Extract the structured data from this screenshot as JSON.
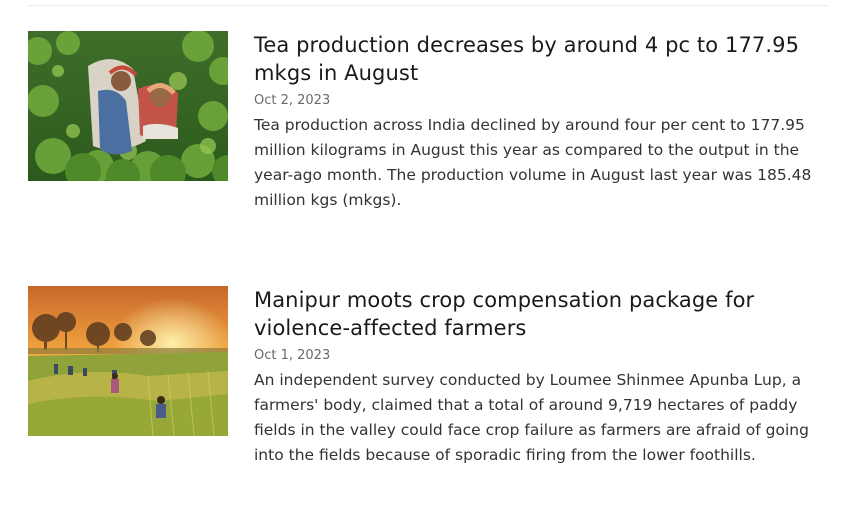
{
  "articles": [
    {
      "title": "Tea production decreases by around 4 pc to 177.95 mkgs in August",
      "date": "Oct 2, 2023",
      "summary": "Tea production across India declined by around four per cent to 177.95 million kilograms in August this year as compared to the output in the year-ago month. The production volume in August last year was 185.48 million kgs (mkgs).",
      "thumbnail": "tea-pickers-photo"
    },
    {
      "title": "Manipur moots crop compensation package for violence-affected farmers",
      "date": "Oct 1, 2023",
      "summary": "An independent survey conducted by Loumee Shinmee Apunba Lup, a farmers' body, claimed that a total of around 9,719 hectares of paddy fields in the valley could face crop failure as farmers are afraid of going into the fields because of sporadic firing from the lower foothills.",
      "thumbnail": "paddy-field-sunset-photo"
    }
  ]
}
